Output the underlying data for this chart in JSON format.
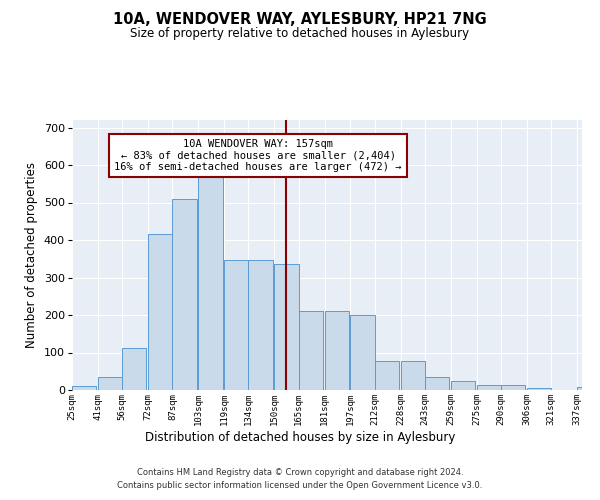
{
  "title": "10A, WENDOVER WAY, AYLESBURY, HP21 7NG",
  "subtitle": "Size of property relative to detached houses in Aylesbury",
  "xlabel": "Distribution of detached houses by size in Aylesbury",
  "ylabel": "Number of detached properties",
  "bar_values": [
    10,
    35,
    113,
    415,
    510,
    578,
    348,
    348,
    335,
    210,
    210,
    200,
    78,
    78,
    35,
    25,
    13,
    13,
    6,
    0,
    8
  ],
  "bin_starts": [
    25,
    41,
    56,
    72,
    87,
    103,
    119,
    134,
    150,
    165,
    181,
    197,
    212,
    228,
    243,
    259,
    275,
    290,
    306,
    321,
    337
  ],
  "bin_width": 15,
  "bar_color": "#c9daea",
  "bar_edge_color": "#5b9bd5",
  "vline_x": 157,
  "vline_color": "#8b0000",
  "annotation_line1": "10A WENDOVER WAY: 157sqm",
  "annotation_line2": "← 83% of detached houses are smaller (2,404)",
  "annotation_line3": "16% of semi-detached houses are larger (472) →",
  "annotation_box_edgecolor": "#8b0000",
  "ylim": [
    0,
    720
  ],
  "yticks": [
    0,
    100,
    200,
    300,
    400,
    500,
    600,
    700
  ],
  "bg_color": "#e8eef6",
  "grid_color": "#ffffff",
  "footer_line1": "Contains HM Land Registry data © Crown copyright and database right 2024.",
  "footer_line2": "Contains public sector information licensed under the Open Government Licence v3.0.",
  "tick_labels": [
    "25sqm",
    "41sqm",
    "56sqm",
    "72sqm",
    "87sqm",
    "103sqm",
    "119sqm",
    "134sqm",
    "150sqm",
    "165sqm",
    "181sqm",
    "197sqm",
    "212sqm",
    "228sqm",
    "243sqm",
    "259sqm",
    "275sqm",
    "290sqm",
    "306sqm",
    "321sqm",
    "337sqm"
  ]
}
